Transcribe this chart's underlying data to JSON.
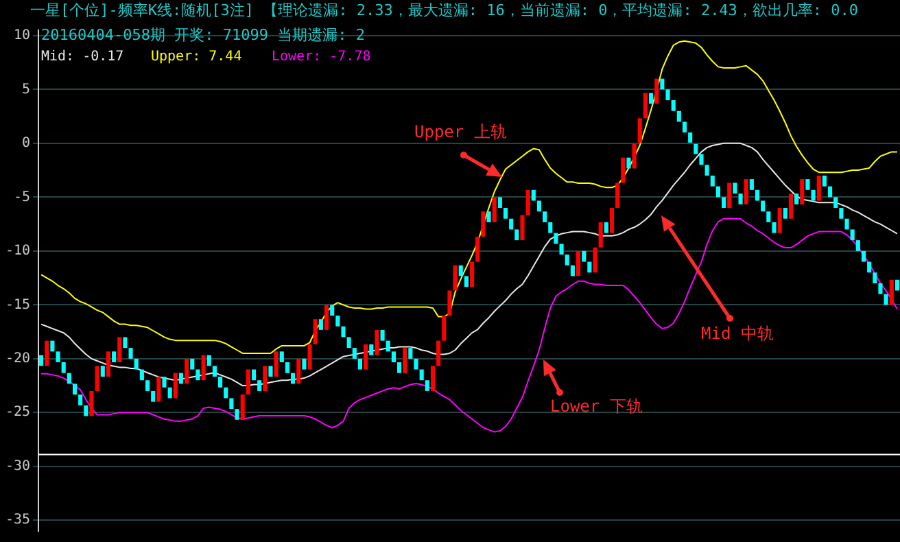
{
  "chart_data": {
    "type": "candlestick",
    "title": "一星[个位]-频率K线:随机[3注]  【理论遗漏: 2.33，最大遗漏: 16，当前遗漏: 0，平均遗漏: 2.43，欲出几率: 0.0",
    "subtitle": "20160404-058期 开奖: 71099 当期遗漏: 2",
    "annotations": [
      "Mid: -0.17",
      "Upper: 7.44",
      "Lower: -7.78",
      "Upper 上轨",
      "Mid 中轨",
      "Lower 下轨"
    ],
    "categories": [
      null,
      null,
      null,
      null,
      null,
      null,
      null,
      null,
      null,
      null,
      null,
      null,
      null,
      null,
      null,
      null,
      null,
      null,
      null,
      null,
      null,
      null,
      null,
      null,
      null,
      null,
      null,
      null,
      null,
      null,
      null,
      null,
      null,
      null,
      null,
      null,
      null,
      null,
      null,
      null,
      null,
      null,
      null,
      null,
      null,
      null,
      null,
      null,
      null,
      null,
      null,
      null,
      null,
      null,
      null,
      null,
      null,
      null,
      null,
      null,
      null,
      null,
      null,
      null,
      null,
      null,
      null,
      null,
      null,
      null,
      null,
      null,
      null,
      null,
      null,
      null,
      null,
      null,
      null,
      null,
      null,
      null,
      null,
      null,
      null,
      null,
      null,
      null,
      null,
      null,
      null,
      null,
      null,
      null,
      null,
      null,
      null,
      null,
      null,
      null,
      null,
      null,
      null,
      null,
      null,
      null,
      null,
      null,
      null,
      null,
      null,
      null,
      null,
      null,
      null,
      null,
      null,
      null,
      null,
      null,
      null,
      null,
      null,
      null,
      null,
      null,
      null,
      null,
      null,
      null,
      null,
      null,
      null,
      null,
      null,
      null,
      null,
      null,
      null,
      null,
      null,
      null,
      null,
      null,
      null,
      null,
      null,
      null,
      null,
      null,
      null,
      null,
      null,
      null
    ],
    "ohlc": [
      [
        -19.67,
        -19.67,
        -20.67,
        -20.67
      ],
      [
        -20.67,
        -18.33,
        -20.67,
        -18.33
      ],
      [
        -18.33,
        -18.33,
        -19.33,
        -19.33
      ],
      [
        -19.33,
        -19.33,
        -20.33,
        -20.33
      ],
      [
        -20.33,
        -20.33,
        -21.33,
        -21.33
      ],
      [
        -21.33,
        -21.33,
        -22.33,
        -22.33
      ],
      [
        -22.33,
        -22.33,
        -23.33,
        -23.33
      ],
      [
        -23.33,
        -23.33,
        -24.33,
        -24.33
      ],
      [
        -24.33,
        -24.33,
        -25.33,
        -25.33
      ],
      [
        -25.33,
        -23,
        -25.33,
        -23
      ],
      [
        -23,
        -20.67,
        -23,
        -20.67
      ],
      [
        -20.67,
        -20.67,
        -21.67,
        -21.67
      ],
      [
        -21.67,
        -19.33,
        -21.67,
        -19.33
      ],
      [
        -19.33,
        -19.33,
        -20.33,
        -20.33
      ],
      [
        -20.33,
        -18,
        -20.33,
        -18
      ],
      [
        -18,
        -18,
        -19,
        -19
      ],
      [
        -19,
        -19,
        -20,
        -20
      ],
      [
        -20,
        -20,
        -21,
        -21
      ],
      [
        -21,
        -21,
        -22,
        -22
      ],
      [
        -22,
        -22,
        -23,
        -23
      ],
      [
        -23,
        -23,
        -24,
        -24
      ],
      [
        -24,
        -21.67,
        -24,
        -21.67
      ],
      [
        -21.67,
        -21.67,
        -22.67,
        -22.67
      ],
      [
        -22.67,
        -22.67,
        -23.67,
        -23.67
      ],
      [
        -23.67,
        -21.33,
        -23.67,
        -21.33
      ],
      [
        -21.33,
        -21.33,
        -22.33,
        -22.33
      ],
      [
        -22.33,
        -20,
        -22.33,
        -20
      ],
      [
        -20,
        -20,
        -21,
        -21
      ],
      [
        -21,
        -21,
        -22,
        -22
      ],
      [
        -22,
        -19.67,
        -22,
        -19.67
      ],
      [
        -19.67,
        -19.67,
        -20.67,
        -20.67
      ],
      [
        -20.67,
        -20.67,
        -21.67,
        -21.67
      ],
      [
        -21.67,
        -21.67,
        -22.67,
        -22.67
      ],
      [
        -22.67,
        -22.67,
        -23.67,
        -23.67
      ],
      [
        -23.67,
        -23.67,
        -24.67,
        -24.67
      ],
      [
        -24.67,
        -24.67,
        -25.67,
        -25.67
      ],
      [
        -25.67,
        -23.33,
        -25.67,
        -23.33
      ],
      [
        -23.33,
        -21,
        -23.33,
        -21
      ],
      [
        -21,
        -21,
        -22,
        -22
      ],
      [
        -22,
        -22,
        -23,
        -23
      ],
      [
        -23,
        -20.67,
        -23,
        -20.67
      ],
      [
        -20.67,
        -20.67,
        -21.67,
        -21.67
      ],
      [
        -21.67,
        -19.33,
        -21.67,
        -19.33
      ],
      [
        -19.33,
        -19.33,
        -20.33,
        -20.33
      ],
      [
        -20.33,
        -20.33,
        -21.33,
        -21.33
      ],
      [
        -21.33,
        -21.33,
        -22.33,
        -22.33
      ],
      [
        -22.33,
        -20,
        -22.33,
        -20
      ],
      [
        -20,
        -20,
        -21,
        -21
      ],
      [
        -21,
        -18.67,
        -21,
        -18.67
      ],
      [
        -18.67,
        -16.33,
        -18.67,
        -16.33
      ],
      [
        -16.33,
        -16.33,
        -17.33,
        -17.33
      ],
      [
        -17.33,
        -15,
        -17.33,
        -15
      ],
      [
        -15,
        -15,
        -16,
        -16
      ],
      [
        -16,
        -16,
        -17,
        -17
      ],
      [
        -17,
        -17,
        -18,
        -18
      ],
      [
        -18,
        -18,
        -19,
        -19
      ],
      [
        -19,
        -19,
        -20,
        -20
      ],
      [
        -20,
        -20,
        -21,
        -21
      ],
      [
        -21,
        -18.67,
        -21,
        -18.67
      ],
      [
        -18.67,
        -18.67,
        -19.67,
        -19.67
      ],
      [
        -19.67,
        -17.33,
        -19.67,
        -17.33
      ],
      [
        -17.33,
        -17.33,
        -18.33,
        -18.33
      ],
      [
        -18.33,
        -18.33,
        -19.33,
        -19.33
      ],
      [
        -19.33,
        -19.33,
        -20.33,
        -20.33
      ],
      [
        -20.33,
        -20.33,
        -21.33,
        -21.33
      ],
      [
        -21.33,
        -19,
        -21.33,
        -19
      ],
      [
        -19,
        -19,
        -20,
        -20
      ],
      [
        -20,
        -20,
        -21,
        -21
      ],
      [
        -21,
        -21,
        -22,
        -22
      ],
      [
        -22,
        -22,
        -23,
        -23
      ],
      [
        -23,
        -20.67,
        -23,
        -20.67
      ],
      [
        -20.67,
        -18.33,
        -20.67,
        -18.33
      ],
      [
        -18.33,
        -16,
        -18.33,
        -16
      ],
      [
        -16,
        -13.67,
        -16,
        -13.67
      ],
      [
        -13.67,
        -11.33,
        -13.67,
        -11.33
      ],
      [
        -11.33,
        -11.33,
        -12.33,
        -12.33
      ],
      [
        -12.33,
        -12.33,
        -13.33,
        -13.33
      ],
      [
        -13.33,
        -11,
        -13.33,
        -11
      ],
      [
        -11,
        -8.67,
        -11,
        -8.67
      ],
      [
        -8.67,
        -6.33,
        -8.67,
        -6.33
      ],
      [
        -6.33,
        -6.33,
        -7.33,
        -7.33
      ],
      [
        -7.33,
        -5,
        -7.33,
        -5
      ],
      [
        -5,
        -5,
        -6,
        -6
      ],
      [
        -6,
        -6,
        -7,
        -7
      ],
      [
        -7,
        -7,
        -8,
        -8
      ],
      [
        -8,
        -8,
        -9,
        -9
      ],
      [
        -9,
        -6.67,
        -9,
        -6.67
      ],
      [
        -6.67,
        -4.33,
        -6.67,
        -4.33
      ],
      [
        -4.33,
        -4.33,
        -5.33,
        -5.33
      ],
      [
        -5.33,
        -5.33,
        -6.33,
        -6.33
      ],
      [
        -6.33,
        -6.33,
        -7.33,
        -7.33
      ],
      [
        -7.33,
        -7.33,
        -8.33,
        -8.33
      ],
      [
        -8.33,
        -8.33,
        -9.33,
        -9.33
      ],
      [
        -9.33,
        -9.33,
        -10.33,
        -10.33
      ],
      [
        -10.33,
        -10.33,
        -11.33,
        -11.33
      ],
      [
        -11.33,
        -11.33,
        -12.33,
        -12.33
      ],
      [
        -12.33,
        -10,
        -12.33,
        -10
      ],
      [
        -10,
        -10,
        -11,
        -11
      ],
      [
        -11,
        -11,
        -12,
        -12
      ],
      [
        -12,
        -9.67,
        -12,
        -9.67
      ],
      [
        -9.67,
        -7.33,
        -9.67,
        -7.33
      ],
      [
        -7.33,
        -7.33,
        -8.33,
        -8.33
      ],
      [
        -8.33,
        -6,
        -8.33,
        -6
      ],
      [
        -6,
        -3.67,
        -6,
        -3.67
      ],
      [
        -3.67,
        -1.33,
        -3.67,
        -1.33
      ],
      [
        -1.33,
        -1.33,
        -2.33,
        -2.33
      ],
      [
        -2.33,
        0,
        -2.33,
        0
      ],
      [
        0,
        2.33,
        0,
        2.33
      ],
      [
        2.33,
        4.67,
        2.33,
        4.67
      ],
      [
        4.67,
        4.67,
        3.67,
        3.67
      ],
      [
        3.67,
        6,
        3.67,
        6
      ],
      [
        6,
        6,
        5,
        5
      ],
      [
        5,
        5,
        4,
        4
      ],
      [
        4,
        4,
        3,
        3
      ],
      [
        3,
        3,
        2,
        2
      ],
      [
        2,
        2,
        1,
        1
      ],
      [
        1,
        1,
        0,
        0
      ],
      [
        0,
        0,
        -1,
        -1
      ],
      [
        -1,
        -1,
        -2,
        -2
      ],
      [
        -2,
        -2,
        -3,
        -3
      ],
      [
        -3,
        -3,
        -4,
        -4
      ],
      [
        -4,
        -4,
        -5,
        -5
      ],
      [
        -5,
        -5,
        -6,
        -6
      ],
      [
        -6,
        -3.67,
        -6,
        -3.67
      ],
      [
        -3.67,
        -3.67,
        -4.67,
        -4.67
      ],
      [
        -4.67,
        -4.67,
        -5.67,
        -5.67
      ],
      [
        -5.67,
        -3.33,
        -5.67,
        -3.33
      ],
      [
        -3.33,
        -3.33,
        -4.33,
        -4.33
      ],
      [
        -4.33,
        -4.33,
        -5.33,
        -5.33
      ],
      [
        -5.33,
        -5.33,
        -6.33,
        -6.33
      ],
      [
        -6.33,
        -6.33,
        -7.33,
        -7.33
      ],
      [
        -7.33,
        -7.33,
        -8.33,
        -8.33
      ],
      [
        -8.33,
        -6,
        -8.33,
        -6
      ],
      [
        -6,
        -6,
        -7,
        -7
      ],
      [
        -7,
        -4.67,
        -7,
        -4.67
      ],
      [
        -4.67,
        -4.67,
        -5.67,
        -5.67
      ],
      [
        -5.67,
        -3.33,
        -5.67,
        -3.33
      ],
      [
        -3.33,
        -3.33,
        -4.33,
        -4.33
      ],
      [
        -4.33,
        -4.33,
        -5.33,
        -5.33
      ],
      [
        -5.33,
        -3,
        -5.33,
        -3
      ],
      [
        -3,
        -3,
        -4,
        -4
      ],
      [
        -4,
        -4,
        -5,
        -5
      ],
      [
        -5,
        -5,
        -6,
        -6
      ],
      [
        -6,
        -6,
        -7,
        -7
      ],
      [
        -7,
        -7,
        -8,
        -8
      ],
      [
        -8,
        -8,
        -9,
        -9
      ],
      [
        -9,
        -9,
        -10,
        -10
      ],
      [
        -10,
        -10,
        -11,
        -11
      ],
      [
        -11,
        -11,
        -12,
        -12
      ],
      [
        -12,
        -12,
        -13,
        -13
      ],
      [
        -13,
        -13,
        -14,
        -14
      ],
      [
        -14,
        -14,
        -15,
        -15
      ],
      [
        -15,
        -12.67,
        -15,
        -12.67
      ],
      [
        -12.67,
        -12.67,
        -13.67,
        -13.67
      ]
    ],
    "series": [
      {
        "type": "line",
        "color": "#e8e8e8",
        "values": [
          -16.8,
          -17,
          -17.2,
          -17.4,
          -17.6,
          -18,
          -18.6,
          -19.1,
          -19.6,
          -20,
          -20.2,
          -20.4,
          -20.6,
          -20.7,
          -20.8,
          -20.8,
          -20.9,
          -20.9,
          -21.1,
          -21.3,
          -21.5,
          -21.7,
          -21.8,
          -21.9,
          -22,
          -21.9,
          -21.8,
          -21.7,
          -21.6,
          -21.5,
          -21.4,
          -21.3,
          -21.5,
          -21.7,
          -21.9,
          -22.2,
          -22.5,
          -22.5,
          -22.4,
          -22.4,
          -22.3,
          -22.2,
          -22.1,
          -22,
          -22,
          -21.9,
          -21.9,
          -21.8,
          -21.6,
          -21.3,
          -21,
          -20.7,
          -20.4,
          -20.1,
          -19.8,
          -19.7,
          -19.6,
          -19.5,
          -19.4,
          -19.3,
          -19.2,
          -19.1,
          -19,
          -19,
          -18.9,
          -18.9,
          -18.9,
          -19,
          -19.2,
          -19.3,
          -19.5,
          -19.6,
          -19.6,
          -19.5,
          -19.2,
          -18.6,
          -18.1,
          -17.6,
          -17.3,
          -16.7,
          -16.2,
          -15.6,
          -15.1,
          -14.6,
          -14,
          -13.5,
          -13.1,
          -12.3,
          -11.4,
          -10.5,
          -9.6,
          -8.9,
          -8.6,
          -8.4,
          -8.3,
          -8.2,
          -8.2,
          -8.2,
          -8.3,
          -8.4,
          -8.6,
          -8.6,
          -8.6,
          -8.5,
          -8.3,
          -8,
          -7.8,
          -7.5,
          -7.1,
          -6.6,
          -5.9,
          -5.3,
          -4.6,
          -3.9,
          -3.3,
          -2.7,
          -2,
          -1.4,
          -0.8,
          -0.4,
          -0.2,
          -0.1,
          0,
          0,
          0,
          0,
          -0.2,
          -0.4,
          -0.8,
          -1.5,
          -2.1,
          -2.7,
          -3.3,
          -3.9,
          -4.4,
          -4.9,
          -5.2,
          -5.3,
          -5.4,
          -5.5,
          -5.5,
          -5.5,
          -5.5,
          -5.7,
          -5.9,
          -6.2,
          -6.4,
          -6.7,
          -7,
          -7.3,
          -7.5,
          -7.8,
          -8.1,
          -8.4
        ]
      },
      {
        "type": "line",
        "color": "#ffff00",
        "values": [
          -12.2,
          -12.5,
          -12.8,
          -13.2,
          -13.5,
          -13.9,
          -14.4,
          -14.7,
          -14.9,
          -15.2,
          -15.5,
          -15.7,
          -16.1,
          -16.5,
          -16.8,
          -16.8,
          -16.9,
          -16.9,
          -17,
          -17.1,
          -17.4,
          -17.7,
          -18,
          -18.2,
          -18.3,
          -18.3,
          -18.3,
          -18.3,
          -18.3,
          -18.3,
          -18.3,
          -18.3,
          -18.4,
          -18.6,
          -18.9,
          -19.2,
          -19.5,
          -19.5,
          -19.5,
          -19.5,
          -19.5,
          -19.5,
          -19.1,
          -18.8,
          -18.8,
          -18.8,
          -18.8,
          -18.8,
          -18.5,
          -17.4,
          -16.6,
          -15.7,
          -15.1,
          -14.8,
          -15,
          -15.2,
          -15.3,
          -15.3,
          -15.4,
          -15.4,
          -15.3,
          -15.3,
          -15.2,
          -15.2,
          -15.2,
          -15.2,
          -15.2,
          -15.2,
          -15.2,
          -15.2,
          -15.3,
          -16.1,
          -16.1,
          -15.8,
          -13.8,
          -12.6,
          -11.5,
          -10.4,
          -9.2,
          -7.6,
          -6,
          -4.5,
          -3.4,
          -2.4,
          -2,
          -1.6,
          -1.2,
          -0.8,
          -0.5,
          -0.6,
          -1.5,
          -2.3,
          -2.8,
          -3.2,
          -3.6,
          -3.6,
          -3.7,
          -3.7,
          -3.7,
          -3.8,
          -4,
          -4.1,
          -4.1,
          -3.9,
          -3.2,
          -2.3,
          -1.3,
          -0.2,
          1.4,
          3.1,
          4.9,
          6.9,
          8.1,
          9.1,
          9.4,
          9.5,
          9.4,
          9.3,
          8.9,
          8.2,
          7.6,
          7.1,
          7,
          7,
          7,
          7.1,
          7.2,
          6.8,
          6.4,
          5.8,
          4.9,
          4,
          3,
          1.9,
          0.7,
          -0.3,
          -1.1,
          -1.8,
          -2.4,
          -2.7,
          -2.7,
          -2.7,
          -2.7,
          -2.7,
          -2.6,
          -2.5,
          -2.5,
          -2.4,
          -2.3,
          -1.7,
          -1.2,
          -1,
          -0.8,
          -0.8
        ]
      },
      {
        "type": "line",
        "color": "#ff00ff",
        "values": [
          -21.4,
          -21.4,
          -21.5,
          -21.6,
          -21.8,
          -22.1,
          -22.5,
          -22.9,
          -23.8,
          -24.6,
          -25.2,
          -25.2,
          -25.2,
          -25.1,
          -25,
          -25,
          -25,
          -25,
          -25,
          -25,
          -25.2,
          -25.4,
          -25.6,
          -25.7,
          -25.8,
          -25.8,
          -25.7,
          -25.6,
          -25.3,
          -24.6,
          -24.5,
          -24.6,
          -24.7,
          -24.9,
          -25.2,
          -25.5,
          -25.6,
          -25.5,
          -25.4,
          -25.3,
          -25.3,
          -25.3,
          -25.3,
          -25.3,
          -25.3,
          -25.3,
          -25.3,
          -25.3,
          -25.4,
          -25.6,
          -25.9,
          -26.2,
          -26.4,
          -26.2,
          -25.8,
          -24.6,
          -24.1,
          -23.8,
          -23.6,
          -23.4,
          -23.2,
          -23,
          -22.8,
          -22.7,
          -22.8,
          -22.6,
          -22.4,
          -22.3,
          -22.4,
          -22.6,
          -22.8,
          -23.2,
          -23.5,
          -23.8,
          -24.3,
          -24.8,
          -25.2,
          -25.6,
          -26,
          -26.4,
          -26.6,
          -26.8,
          -26.7,
          -26.3,
          -25.6,
          -24.6,
          -23.6,
          -22.1,
          -20.7,
          -19.2,
          -17.2,
          -15.3,
          -14.2,
          -13.8,
          -13.5,
          -13.1,
          -12.8,
          -12.8,
          -13,
          -13.1,
          -13.1,
          -13.2,
          -13.2,
          -13.2,
          -13.2,
          -13.6,
          -14.2,
          -14.8,
          -15.5,
          -16.2,
          -16.8,
          -17.2,
          -17.1,
          -16.7,
          -15.8,
          -14.7,
          -13.4,
          -12.2,
          -11,
          -9.4,
          -8.1,
          -7.3,
          -7,
          -7,
          -7,
          -7,
          -7.4,
          -7.7,
          -8.1,
          -8.4,
          -8.8,
          -9.2,
          -9.5,
          -9.7,
          -9.7,
          -9.4,
          -9,
          -8.6,
          -8.4,
          -8.2,
          -8.2,
          -8.2,
          -8.2,
          -8.2,
          -8.5,
          -9,
          -9.6,
          -10.4,
          -11.2,
          -12.1,
          -13,
          -13.7,
          -14.5,
          -15.4
        ]
      }
    ],
    "ylim": [
      -36,
      10.5
    ],
    "yticks": [
      10,
      5,
      0,
      -5,
      -10,
      -15,
      -20,
      -25,
      -30,
      -35
    ],
    "grid": "y",
    "tick_labels": "y",
    "ref_lines": [
      {
        "axis": "y",
        "value": -28.9,
        "color": "#ffffff"
      }
    ]
  }
}
